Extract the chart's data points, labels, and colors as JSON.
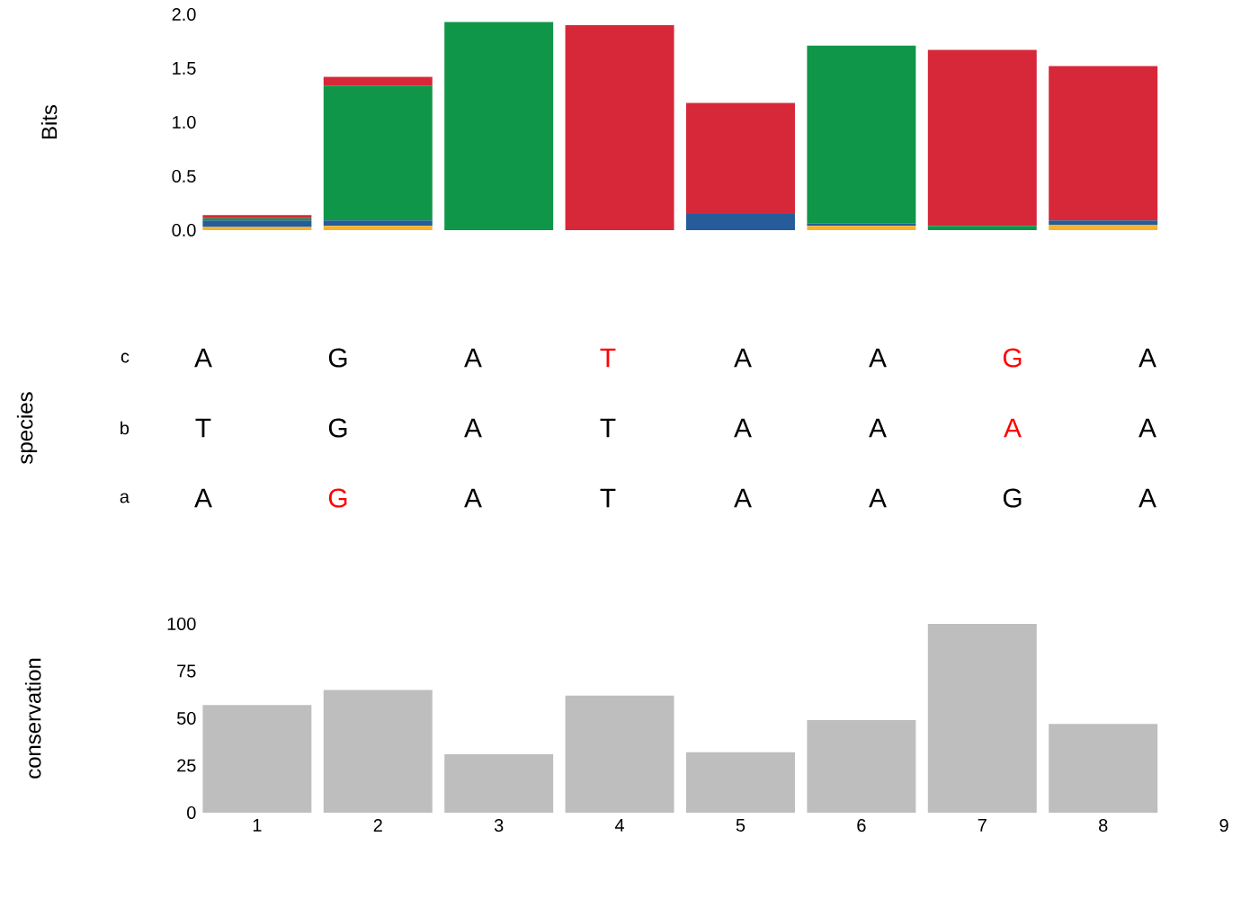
{
  "chart_data": [
    {
      "type": "bar",
      "stacked": true,
      "ylabel": "Bits",
      "x": [
        1,
        2,
        3,
        4,
        5,
        6,
        7,
        8
      ],
      "ylim": [
        0,
        2
      ],
      "yticks": [
        {
          "value": 0,
          "label": "0.0"
        },
        {
          "value": 0.5,
          "label": "0.5"
        },
        {
          "value": 1,
          "label": "1.0"
        },
        {
          "value": 1.5,
          "label": "1.5"
        },
        {
          "value": 2,
          "label": "2.0"
        }
      ],
      "tick_labels": "y",
      "series": [
        {
          "color": "#f7b32b",
          "values": [
            0.03,
            0.04,
            0,
            0,
            0,
            0.04,
            0,
            0.05
          ]
        },
        {
          "color": "#255c99",
          "values": [
            0.06,
            0.05,
            0,
            0,
            0.15,
            0.02,
            0,
            0.04
          ]
        },
        {
          "color": "#109648",
          "values": [
            0.02,
            1.25,
            1.93,
            0,
            0,
            1.65,
            0.04,
            0
          ]
        },
        {
          "color": "#d62839",
          "values": [
            0.03,
            0.08,
            0,
            1.9,
            1.03,
            0,
            1.63,
            1.43
          ]
        }
      ]
    },
    {
      "type": "other",
      "ylabel": "species",
      "y_categories": [
        "c",
        "b",
        "a"
      ],
      "cell_labels": [
        [
          "A",
          "G",
          "A",
          "T",
          "A",
          "A",
          "G",
          "A"
        ],
        [
          "T",
          "G",
          "A",
          "T",
          "A",
          "A",
          "A",
          "A"
        ],
        [
          "A",
          "G",
          "A",
          "T",
          "A",
          "A",
          "G",
          "A"
        ]
      ],
      "colors": [
        [
          "#000000",
          "#000000",
          "#000000",
          "#ff0000",
          "#000000",
          "#000000",
          "#ff0000",
          "#000000"
        ],
        [
          "#000000",
          "#000000",
          "#000000",
          "#000000",
          "#000000",
          "#000000",
          "#ff0000",
          "#000000"
        ],
        [
          "#000000",
          "#ff0000",
          "#000000",
          "#000000",
          "#000000",
          "#000000",
          "#000000",
          "#000000"
        ]
      ]
    },
    {
      "type": "bar",
      "ylabel": "conservation",
      "x": [
        1,
        2,
        3,
        4,
        5,
        6,
        7,
        8
      ],
      "values": [
        57,
        65,
        31,
        62,
        32,
        49,
        100,
        47
      ],
      "color": "#bebebe",
      "xlim": [
        0.55,
        9
      ],
      "ylim": [
        0,
        100
      ],
      "xticks": [
        1,
        2,
        3,
        4,
        5,
        6,
        7,
        8,
        9
      ],
      "yticks": [
        0,
        25,
        50,
        75,
        100
      ]
    }
  ]
}
